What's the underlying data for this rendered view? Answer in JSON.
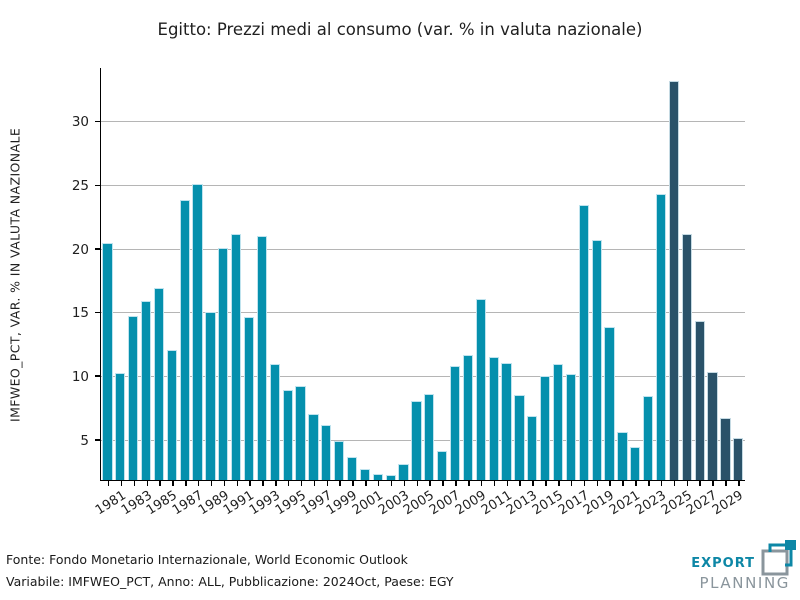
{
  "title": "Egitto: Prezzi medi al consumo (var. % in valuta nazionale)",
  "chart_data": {
    "type": "bar",
    "title": "Egitto: Prezzi medi al consumo (var. % in valuta nazionale)",
    "xlabel": "",
    "ylabel": "IMFWEO_PCT, VAR. % IN VALUTA NAZIONALE",
    "categories": [
      1980,
      1981,
      1982,
      1983,
      1984,
      1985,
      1986,
      1987,
      1988,
      1989,
      1990,
      1991,
      1992,
      1993,
      1994,
      1995,
      1996,
      1997,
      1998,
      1999,
      2000,
      2001,
      2002,
      2003,
      2004,
      2005,
      2006,
      2007,
      2008,
      2009,
      2010,
      2011,
      2012,
      2013,
      2014,
      2015,
      2016,
      2017,
      2018,
      2019,
      2020,
      2021,
      2022,
      2023,
      2024,
      2025,
      2026,
      2027,
      2028,
      2029
    ],
    "values": [
      20.5,
      10.3,
      14.8,
      16.0,
      17.0,
      12.1,
      23.9,
      25.2,
      15.1,
      20.1,
      21.2,
      14.7,
      21.1,
      11.0,
      9.0,
      9.3,
      7.1,
      6.2,
      5.0,
      3.7,
      2.8,
      2.4,
      2.3,
      3.2,
      8.1,
      8.7,
      4.2,
      10.9,
      11.7,
      16.1,
      11.6,
      11.1,
      8.6,
      6.9,
      10.1,
      11.0,
      10.2,
      23.5,
      20.8,
      13.9,
      5.7,
      4.5,
      8.5,
      24.4,
      33.3,
      21.2,
      14.4,
      10.4,
      6.8,
      5.2
    ],
    "forecast_from": 2024,
    "bar_color_actual": "#0590ad",
    "bar_color_forecast": "#2a5269",
    "yticks": [
      5,
      10,
      15,
      20,
      25,
      30
    ],
    "ylim": [
      1.9,
      34.2
    ],
    "xtick_label_years": [
      1981,
      1983,
      1985,
      1987,
      1989,
      1991,
      1993,
      1995,
      1997,
      1999,
      2001,
      2003,
      2005,
      2007,
      2009,
      2011,
      2013,
      2015,
      2017,
      2019,
      2021,
      2023,
      2025,
      2027,
      2029
    ],
    "grid": "horizontal",
    "legend": "none"
  },
  "footer": {
    "line1": "Fonte: Fondo Monetario Internazionale, World Economic Outlook",
    "line2": "Variabile: IMFWEO_PCT, Anno: ALL, Pubblicazione: 2024Oct, Paese: EGY"
  },
  "logo": {
    "word1": "EXPORT",
    "word2": "PLANNING",
    "teal": "#0d87a6",
    "gray": "#8a959c"
  }
}
